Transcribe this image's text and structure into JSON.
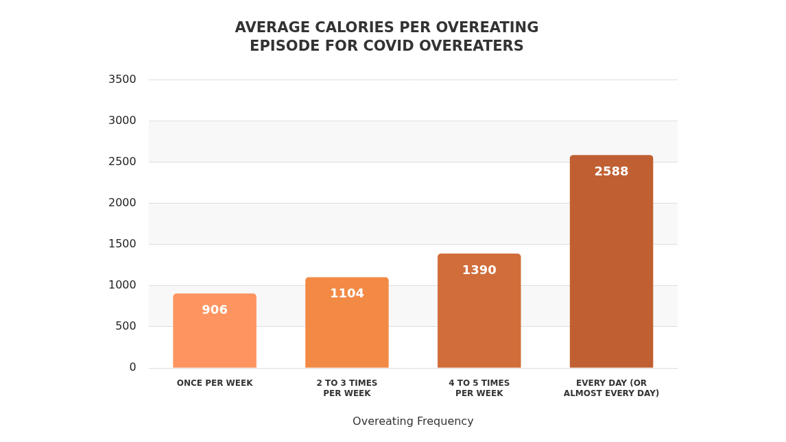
{
  "chart_data": {
    "type": "bar",
    "title": "AVERAGE CALORIES PER OVEREATING EPISODE FOR COVID OVEREATERS",
    "x_label": "Overeating Frequency",
    "categories": [
      "ONCE PER WEEK",
      "2 TO 3 TIMES PER WEEK",
      "4 TO 5 TIMES PER WEEK",
      "EVERY DAY (OR ALMOST EVERY DAY)"
    ],
    "values": [
      906,
      1104,
      1390,
      2588
    ],
    "colors": [
      "#fe9460",
      "#f28a45",
      "#d06d3a",
      "#c06032"
    ],
    "ylim": [
      0,
      3500
    ],
    "yticks": [
      0,
      500,
      1000,
      1500,
      2000,
      2500,
      3000,
      3500
    ],
    "grid": true,
    "data_labels": true
  }
}
